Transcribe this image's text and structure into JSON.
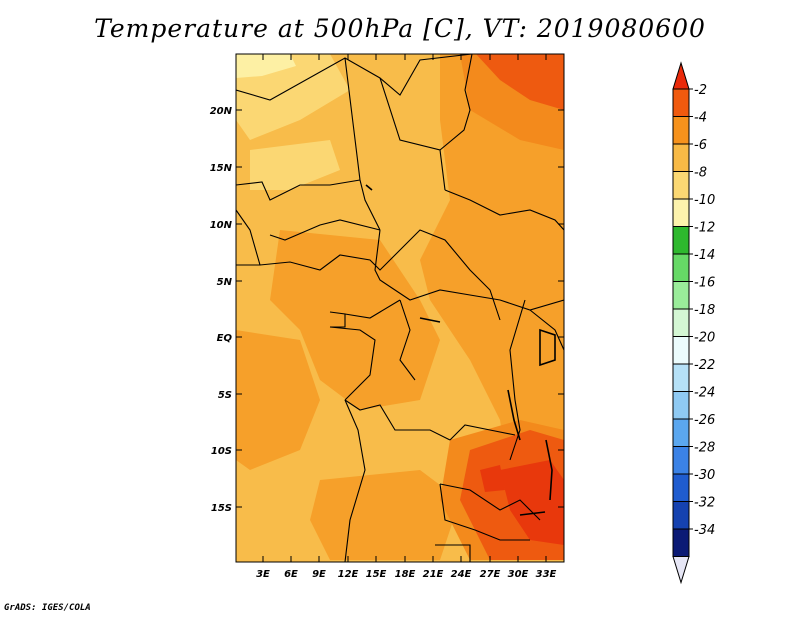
{
  "title": "Temperature at 500hPa [C], VT: 2019080600",
  "credit": "GrADS: IGES/COLA",
  "colors": {
    "base": "#f8bc4a",
    "warm": "#f6a02a",
    "warmer": "#f38a1c",
    "hot": "#ee5a10",
    "hotter": "#e8380c",
    "cool": "#fbd773",
    "coolest": "#fdf0a4",
    "border": "#000000"
  },
  "map": {
    "lat_ticks": [
      "20N",
      "15N",
      "10N",
      "5N",
      "EQ",
      "5S",
      "10S",
      "15S"
    ],
    "lon_ticks": [
      "3E",
      "6E",
      "9E",
      "12E",
      "15E",
      "18E",
      "21E",
      "24E",
      "27E",
      "30E",
      "33E"
    ]
  },
  "colorbar": {
    "labels": [
      "-2",
      "-4",
      "-6",
      "-8",
      "-10",
      "-12",
      "-14",
      "-16",
      "-18",
      "-20",
      "-22",
      "-24",
      "-26",
      "-28",
      "-30",
      "-32",
      "-34"
    ],
    "colors": [
      "#ea2a0a",
      "#f05a0e",
      "#f6921c",
      "#f8ba46",
      "#fbd873",
      "#fdf3ad",
      "#2eb82e",
      "#66d966",
      "#9aec9a",
      "#d4f7d4",
      "#ecfcfd",
      "#b6e1f7",
      "#8fcaf3",
      "#5ba7ef",
      "#3b82e6",
      "#1f5ccf",
      "#1542b0",
      "#0b1a75",
      "#e6e6f5"
    ]
  }
}
